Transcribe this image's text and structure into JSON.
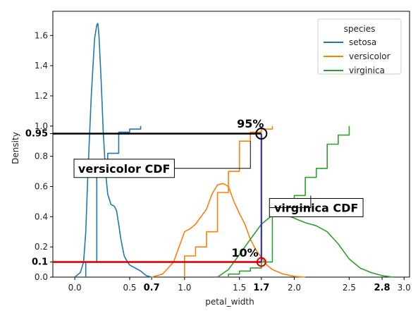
{
  "chart_data": {
    "type": "line",
    "xlabel": "petal_width",
    "ylabel": "Density",
    "xlim": [
      -0.2,
      3.05
    ],
    "ylim": [
      0,
      1.76
    ],
    "xticks": [
      {
        "v": 0.0,
        "label": "0.0",
        "bold": false
      },
      {
        "v": 0.5,
        "label": "0.5",
        "bold": false
      },
      {
        "v": 0.7,
        "label": "0.7",
        "bold": true
      },
      {
        "v": 1.0,
        "label": "1.0",
        "bold": false
      },
      {
        "v": 1.5,
        "label": "1.5",
        "bold": false
      },
      {
        "v": 1.7,
        "label": "1.7",
        "bold": true
      },
      {
        "v": 2.0,
        "label": "2.0",
        "bold": false
      },
      {
        "v": 2.5,
        "label": "2.5",
        "bold": false
      },
      {
        "v": 2.8,
        "label": "2.8",
        "bold": true
      },
      {
        "v": 3.0,
        "label": "3.0",
        "bold": false
      }
    ],
    "yticks": [
      {
        "v": 0.0,
        "label": "0.0",
        "bold": false
      },
      {
        "v": 0.1,
        "label": "0.1",
        "bold": true
      },
      {
        "v": 0.2,
        "label": "0.2",
        "bold": false
      },
      {
        "v": 0.4,
        "label": "0.4",
        "bold": false
      },
      {
        "v": 0.6,
        "label": "0.6",
        "bold": false
      },
      {
        "v": 0.8,
        "label": "0.8",
        "bold": false
      },
      {
        "v": 0.95,
        "label": "0.95",
        "bold": true
      },
      {
        "v": 1.0,
        "label": "1.0",
        "bold": false
      },
      {
        "v": 1.2,
        "label": "1.2",
        "bold": false
      },
      {
        "v": 1.4,
        "label": "1.4",
        "bold": false
      },
      {
        "v": 1.6,
        "label": "1.6",
        "bold": false
      }
    ],
    "legend": {
      "title": "species",
      "placement": "top-right",
      "entries": [
        {
          "name": "setosa",
          "color": "#1f77b4"
        },
        {
          "name": "versicolor",
          "color": "#ff7f0e"
        },
        {
          "name": "virginica",
          "color": "#2ca02c"
        }
      ]
    },
    "series": [
      {
        "name": "setosa",
        "kind": "density",
        "color": "#1f77b4",
        "x": [
          0.0,
          0.05,
          0.08,
          0.1,
          0.12,
          0.15,
          0.18,
          0.2,
          0.21,
          0.22,
          0.24,
          0.26,
          0.28,
          0.3,
          0.33,
          0.36,
          0.38,
          0.4,
          0.42,
          0.45,
          0.48,
          0.5,
          0.55,
          0.6,
          0.65,
          0.7
        ],
        "y": [
          0.0,
          0.03,
          0.1,
          0.3,
          0.7,
          1.2,
          1.58,
          1.67,
          1.68,
          1.6,
          1.3,
          0.95,
          0.7,
          0.55,
          0.48,
          0.47,
          0.44,
          0.35,
          0.25,
          0.14,
          0.1,
          0.08,
          0.06,
          0.04,
          0.01,
          0.0
        ]
      },
      {
        "name": "versicolor",
        "kind": "density",
        "color": "#ff7f0e",
        "x": [
          0.7,
          0.8,
          0.9,
          0.95,
          1.0,
          1.05,
          1.1,
          1.2,
          1.25,
          1.3,
          1.35,
          1.4,
          1.45,
          1.5,
          1.55,
          1.6,
          1.65,
          1.7,
          1.75,
          1.8,
          1.9,
          2.0,
          2.1
        ],
        "y": [
          0.0,
          0.02,
          0.1,
          0.2,
          0.3,
          0.32,
          0.35,
          0.45,
          0.55,
          0.61,
          0.62,
          0.6,
          0.5,
          0.42,
          0.35,
          0.25,
          0.18,
          0.13,
          0.08,
          0.05,
          0.02,
          0.005,
          0.0
        ]
      },
      {
        "name": "virginica",
        "kind": "density",
        "color": "#2ca02c",
        "x": [
          1.3,
          1.4,
          1.5,
          1.6,
          1.7,
          1.8,
          1.9,
          2.0,
          2.1,
          2.2,
          2.3,
          2.4,
          2.5,
          2.6,
          2.7,
          2.8,
          2.9
        ],
        "y": [
          0.0,
          0.05,
          0.15,
          0.25,
          0.35,
          0.41,
          0.42,
          0.39,
          0.36,
          0.34,
          0.3,
          0.22,
          0.12,
          0.06,
          0.03,
          0.01,
          0.0
        ]
      },
      {
        "name": "setosa",
        "kind": "cdf",
        "color": "#1f77b4",
        "x": [
          0.1,
          0.1,
          0.2,
          0.2,
          0.3,
          0.3,
          0.4,
          0.4,
          0.5,
          0.5,
          0.6,
          0.6
        ],
        "y": [
          0.0,
          0.1,
          0.1,
          0.68,
          0.68,
          0.82,
          0.82,
          0.96,
          0.96,
          0.98,
          0.98,
          1.0
        ]
      },
      {
        "name": "versicolor",
        "kind": "cdf",
        "color": "#ff7f0e",
        "x": [
          1.0,
          1.0,
          1.1,
          1.1,
          1.2,
          1.2,
          1.3,
          1.3,
          1.4,
          1.4,
          1.5,
          1.5,
          1.6,
          1.6,
          1.7,
          1.7,
          1.8,
          1.8
        ],
        "y": [
          0.0,
          0.14,
          0.14,
          0.2,
          0.2,
          0.3,
          0.3,
          0.56,
          0.56,
          0.7,
          0.7,
          0.9,
          0.9,
          0.96,
          0.96,
          0.98,
          0.98,
          1.0
        ]
      },
      {
        "name": "virginica",
        "kind": "cdf",
        "color": "#2ca02c",
        "x": [
          1.4,
          1.4,
          1.5,
          1.5,
          1.6,
          1.6,
          1.7,
          1.7,
          1.8,
          1.8,
          1.9,
          1.9,
          2.0,
          2.0,
          2.1,
          2.1,
          2.2,
          2.2,
          2.3,
          2.3,
          2.4,
          2.4,
          2.5,
          2.5
        ],
        "y": [
          0.0,
          0.02,
          0.02,
          0.04,
          0.04,
          0.06,
          0.06,
          0.1,
          0.1,
          0.42,
          0.42,
          0.48,
          0.48,
          0.54,
          0.54,
          0.66,
          0.66,
          0.72,
          0.72,
          0.88,
          0.88,
          0.94,
          0.94,
          1.0
        ]
      }
    ],
    "annotations": {
      "hlines": [
        {
          "y": 0.95,
          "x_from": -0.2,
          "x_to": 1.7,
          "color": "#000000"
        },
        {
          "y": 0.1,
          "x_from": -0.2,
          "x_to": 1.7,
          "color": "#e00000"
        }
      ],
      "vlines": [
        {
          "x": 1.7,
          "y_from": 0.1,
          "y_to": 0.95,
          "color": "#3030c0"
        }
      ],
      "markers": [
        {
          "x": 1.7,
          "y": 0.95,
          "color": "#000000"
        },
        {
          "x": 1.7,
          "y": 0.1,
          "color": "#e00000"
        }
      ],
      "labels": [
        {
          "text": "95%",
          "x": 1.6,
          "y": 0.99
        },
        {
          "text": "10%",
          "x": 1.55,
          "y": 0.135
        }
      ],
      "boxed": [
        {
          "text": "versicolor CDF",
          "x": 0.45,
          "y": 0.72,
          "target_x": 1.6,
          "target_y": 0.9
        },
        {
          "text": "virginica CDF",
          "x": 2.2,
          "y": 0.46,
          "target_x": 2.15,
          "target_y": 0.54
        }
      ]
    }
  }
}
